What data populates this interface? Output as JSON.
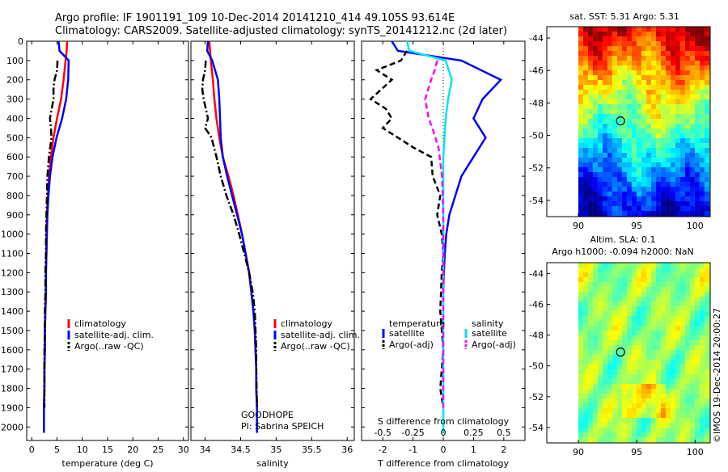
{
  "title_line1": "Argo profile: IF 1901191_109 10-Dec-2014 20141210_414 49.105S 93.614E",
  "title_line2": "Climatology: CARS2009. Satellite-adjusted climatology: synTS_20141212.nc (2d later)",
  "credit": "©IMOS 19-Dec-2014 20:00:27",
  "colors": {
    "climatology": "#ff0000",
    "satellite": "#0000ff",
    "argo": "#000000",
    "sat_salinity": "#00e5ee",
    "argo_salinity": "#ff00ff"
  },
  "chart_data": [
    {
      "id": "temperature",
      "type": "line",
      "xlabel": "temperature (deg C)",
      "xlim": [
        -1,
        31
      ],
      "ylim": [
        2070,
        0
      ],
      "xticks": [
        "0",
        "5",
        "10",
        "15",
        "20",
        "25",
        "30"
      ],
      "xtick_values": [
        0,
        5,
        10,
        15,
        20,
        25,
        30
      ],
      "yticks": [
        "0",
        "100",
        "200",
        "300",
        "400",
        "500",
        "600",
        "700",
        "800",
        "900",
        "1000",
        "1100",
        "1200",
        "1300",
        "1400",
        "1500",
        "1600",
        "1700",
        "1800",
        "1900",
        "2000"
      ],
      "ytick_values": [
        0,
        100,
        200,
        300,
        400,
        500,
        600,
        700,
        800,
        900,
        1000,
        1100,
        1200,
        1300,
        1400,
        1500,
        1600,
        1700,
        1800,
        1900,
        2000
      ],
      "legend": [
        "climatology",
        "satellite-adj. clim.",
        "Argo(..raw -QC)"
      ],
      "legend_position": "lower-right",
      "series": [
        {
          "name": "climatology",
          "color": "#ff0000",
          "style": "solid",
          "x": [
            7.0,
            6.9,
            6.7,
            6.3,
            5.8,
            5.0,
            4.3,
            3.8,
            3.4,
            3.2,
            3.0,
            2.9,
            2.9,
            2.8,
            2.8,
            2.7,
            2.6,
            2.6,
            2.5,
            2.5,
            2.4,
            2.4
          ],
          "y": [
            0,
            50,
            100,
            200,
            300,
            400,
            500,
            600,
            700,
            800,
            900,
            1000,
            1100,
            1200,
            1300,
            1400,
            1500,
            1600,
            1700,
            1800,
            1900,
            2030
          ]
        },
        {
          "name": "satellite-adj. clim.",
          "color": "#0000ff",
          "style": "solid",
          "x": [
            5.3,
            5.5,
            7.3,
            7.2,
            6.8,
            6.0,
            4.9,
            4.1,
            3.6,
            3.3,
            3.1,
            3.0,
            2.9,
            2.8,
            2.8,
            2.7,
            2.6,
            2.6,
            2.5,
            2.5,
            2.4,
            2.4
          ],
          "y": [
            0,
            50,
            100,
            200,
            300,
            400,
            500,
            600,
            700,
            800,
            900,
            1000,
            1100,
            1200,
            1300,
            1400,
            1500,
            1600,
            1700,
            1800,
            1900,
            2030
          ]
        },
        {
          "name": "Argo(..raw -QC)",
          "color": "#000000",
          "style": "dashdot",
          "x": [
            5.1,
            5.0,
            4.5,
            4.3,
            4.3,
            3.6,
            3.8,
            3.9,
            3.4,
            3.1,
            3.0,
            2.9,
            2.8,
            2.8,
            2.7,
            2.7,
            2.6,
            2.6,
            2.5,
            2.5,
            2.5
          ],
          "y": [
            100,
            150,
            200,
            250,
            300,
            400,
            450,
            500,
            600,
            700,
            800,
            900,
            1000,
            1100,
            1200,
            1300,
            1400,
            1500,
            1600,
            1700,
            1900
          ]
        }
      ]
    },
    {
      "id": "salinity",
      "type": "line",
      "xlabel": "salinity",
      "xlim": [
        33.8,
        36.1
      ],
      "ylim": [
        2070,
        0
      ],
      "xticks": [
        "34",
        "34.5",
        "35",
        "35.5",
        "36"
      ],
      "xtick_values": [
        34,
        34.5,
        35,
        35.5,
        36
      ],
      "legend": [
        "climatology",
        "satellite-adj. clim.",
        "Argo(..raw -QC)"
      ],
      "legend_position": "lower-right",
      "annotation_lines": [
        "GOODHOPE",
        "PI: Sabrina SPEICH"
      ],
      "series": [
        {
          "name": "climatology",
          "color": "#ff0000",
          "style": "solid",
          "x": [
            34.06,
            34.07,
            34.08,
            34.11,
            34.13,
            34.16,
            34.2,
            34.25,
            34.33,
            34.4,
            34.46,
            34.52,
            34.57,
            34.62,
            34.65,
            34.68,
            34.7,
            34.71,
            34.72,
            34.72,
            34.73,
            34.73
          ],
          "y": [
            0,
            50,
            100,
            200,
            300,
            400,
            500,
            600,
            700,
            800,
            900,
            1000,
            1100,
            1200,
            1300,
            1400,
            1500,
            1600,
            1700,
            1800,
            1900,
            2030
          ]
        },
        {
          "name": "satellite-adj. clim.",
          "color": "#0000ff",
          "style": "solid",
          "x": [
            34.04,
            34.03,
            34.1,
            34.18,
            34.2,
            34.21,
            34.22,
            34.25,
            34.31,
            34.38,
            34.45,
            34.52,
            34.57,
            34.62,
            34.65,
            34.68,
            34.7,
            34.71,
            34.72,
            34.72,
            34.73,
            34.73
          ],
          "y": [
            0,
            50,
            100,
            200,
            300,
            400,
            500,
            600,
            700,
            800,
            900,
            1000,
            1100,
            1200,
            1300,
            1400,
            1500,
            1600,
            1700,
            1800,
            1900,
            2030
          ]
        },
        {
          "name": "Argo(..raw -QC)",
          "color": "#000000",
          "style": "dashdot",
          "x": [
            34.01,
            34.0,
            33.97,
            33.96,
            33.98,
            34.04,
            34.0,
            34.09,
            34.16,
            34.22,
            34.3,
            34.4,
            34.48,
            34.55,
            34.62,
            34.67,
            34.7,
            34.71,
            34.72,
            34.72,
            34.73
          ],
          "y": [
            100,
            150,
            200,
            250,
            300,
            400,
            450,
            500,
            600,
            700,
            800,
            900,
            1000,
            1100,
            1200,
            1300,
            1400,
            1500,
            1600,
            1700,
            1900
          ]
        }
      ]
    },
    {
      "id": "difference",
      "type": "line",
      "xlabel": "T difference from climatology",
      "top_label": "S difference from climatology",
      "xlim": [
        -2.7,
        2.7
      ],
      "ylim": [
        2070,
        0
      ],
      "xticks": [
        "-2",
        "-1",
        "0",
        "1",
        "2"
      ],
      "xtick_values": [
        -2,
        -1,
        0,
        1,
        2
      ],
      "s_xticks": [
        "-0.5",
        "-0.25",
        "0",
        "0.25",
        "0.5"
      ],
      "s_xtick_values": [
        -0.5,
        -0.25,
        0,
        0.25,
        0.5
      ],
      "s_scale_ratio": 4,
      "legend_temperature_header": "temperature",
      "legend_salinity_header": "salinity",
      "legend": [
        "satellite",
        "Argo(-adj)",
        "satellite",
        "Argo(-adj)"
      ],
      "legend_position": "lower-center",
      "series": [
        {
          "name": "satellite",
          "group": "temperature",
          "color": "#0000ff",
          "style": "solid",
          "x": [
            -1.7,
            -1.5,
            0.6,
            1.9,
            1.3,
            1.0,
            1.4,
            1.0,
            0.6,
            0.4,
            0.2,
            0.1,
            0.05,
            0.02,
            0.0
          ],
          "y": [
            0,
            50,
            100,
            200,
            300,
            400,
            500,
            600,
            700,
            800,
            900,
            1000,
            1100,
            1200,
            1300
          ]
        },
        {
          "name": "Argo(-adj)",
          "group": "temperature",
          "color": "#000000",
          "style": "dashed",
          "x": [
            -1.2,
            -1.4,
            -2.2,
            -1.7,
            -2.4,
            -1.9,
            -1.7,
            -2.0,
            -1.5,
            -1.0,
            -0.4,
            -0.35,
            -0.1,
            -0.2,
            -0.05,
            0.0,
            -0.05,
            -0.1,
            0.0,
            -0.1,
            0.0
          ],
          "y": [
            50,
            100,
            150,
            200,
            300,
            350,
            400,
            450,
            500,
            550,
            600,
            700,
            800,
            900,
            1000,
            1100,
            1200,
            1400,
            1600,
            1800,
            1900
          ]
        },
        {
          "name": "satellite",
          "group": "salinity",
          "color": "#00e5ee",
          "style": "solid",
          "x": [
            -0.3,
            -0.28,
            0.02,
            0.07,
            0.04,
            0.02,
            0.01,
            0.0,
            0.0,
            0.0,
            0.0,
            0.0,
            0.0,
            0.0
          ],
          "y": [
            0,
            50,
            100,
            200,
            300,
            400,
            500,
            600,
            700,
            900,
            1100,
            1300,
            1600,
            2030
          ]
        },
        {
          "name": "Argo(-adj)",
          "group": "salinity",
          "color": "#ff00ff",
          "style": "dashed",
          "x": [
            -0.05,
            -0.07,
            -0.1,
            -0.15,
            -0.12,
            -0.09,
            -0.04,
            -0.01,
            0.0,
            0.0,
            0.0,
            0.0
          ],
          "y": [
            100,
            150,
            200,
            300,
            400,
            450,
            550,
            700,
            900,
            1200,
            1600,
            1900
          ]
        }
      ]
    },
    {
      "id": "sst_map",
      "type": "heatmap",
      "title": "sat. SST: 5.31  Argo: 5.31",
      "xlim": [
        87.3,
        101.3
      ],
      "ylim": [
        -55.0,
        -43.3
      ],
      "xticks": [
        "90",
        "95",
        "100"
      ],
      "xtick_values": [
        90,
        95,
        100
      ],
      "yticks": [
        "-44",
        "-46",
        "-48",
        "-50",
        "-52",
        "-54"
      ],
      "ytick_values": [
        -44,
        -46,
        -48,
        -50,
        -52,
        -54
      ],
      "data_lon_start": 90,
      "marker": {
        "lon": 93.614,
        "lat": -49.105
      }
    },
    {
      "id": "sla_map",
      "type": "heatmap",
      "title_line1": "Altim. SLA: 0.1",
      "title_line2": "Argo h1000: -0.094 h2000: NaN",
      "xlim": [
        87.3,
        101.3
      ],
      "ylim": [
        -55.0,
        -43.3
      ],
      "xticks": [
        "90",
        "95",
        "100"
      ],
      "xtick_values": [
        90,
        95,
        100
      ],
      "yticks": [
        "-44",
        "-46",
        "-48",
        "-50",
        "-52",
        "-54"
      ],
      "ytick_values": [
        -44,
        -46,
        -48,
        -50,
        -52,
        -54
      ],
      "data_lon_start": 90,
      "marker": {
        "lon": 93.614,
        "lat": -49.105
      }
    }
  ]
}
